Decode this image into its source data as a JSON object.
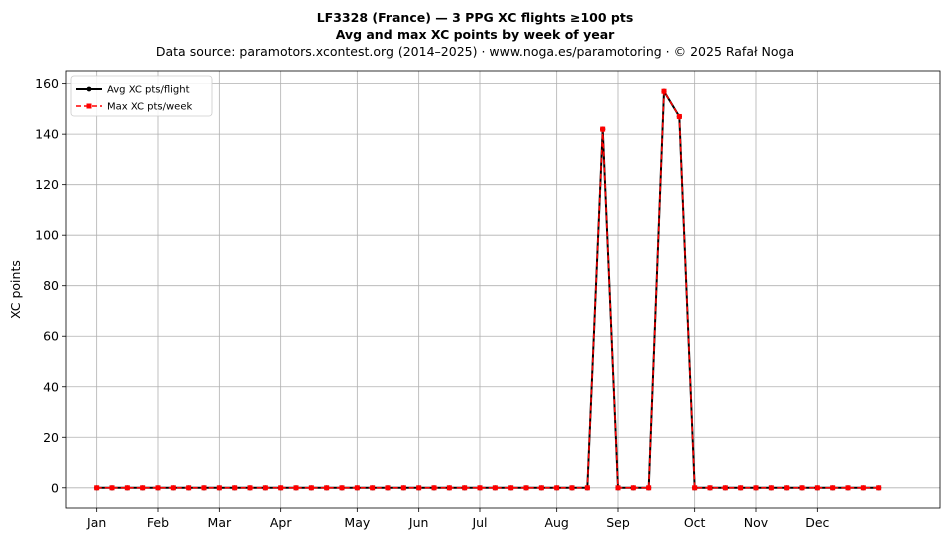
{
  "titles": {
    "line1": "LF3328 (France)  —  3 PPG XC flights ≥100 pts",
    "line2": "Avg and max XC points by week of year",
    "line3": "Data source: paramotors.xcontest.org (2014–2025)  ·  www.noga.es/paramotoring  ·  © 2025 Rafał Noga"
  },
  "chart_data": {
    "type": "line",
    "title": "LF3328 (France)  —  3 PPG XC flights ≥100 pts",
    "subtitle": "Avg and max XC points by week of year",
    "xlabel": "",
    "ylabel": "XC points",
    "x_unit": "week of year",
    "xlim": [
      -1,
      56
    ],
    "ylim": [
      -8,
      165
    ],
    "yticks": [
      0,
      20,
      40,
      60,
      80,
      100,
      120,
      140,
      160
    ],
    "xticks": [
      {
        "label": "Jan",
        "week": 1
      },
      {
        "label": "Feb",
        "week": 5
      },
      {
        "label": "Mar",
        "week": 9
      },
      {
        "label": "Apr",
        "week": 13
      },
      {
        "label": "May",
        "week": 18
      },
      {
        "label": "Jun",
        "week": 22
      },
      {
        "label": "Jul",
        "week": 26
      },
      {
        "label": "Aug",
        "week": 31
      },
      {
        "label": "Sep",
        "week": 35
      },
      {
        "label": "Oct",
        "week": 40
      },
      {
        "label": "Nov",
        "week": 44
      },
      {
        "label": "Dec",
        "week": 48
      }
    ],
    "grid": true,
    "legend_position": "top-left",
    "x": [
      1,
      2,
      3,
      4,
      5,
      6,
      7,
      8,
      9,
      10,
      11,
      12,
      13,
      14,
      15,
      16,
      17,
      18,
      19,
      20,
      21,
      22,
      23,
      24,
      25,
      26,
      27,
      28,
      29,
      30,
      31,
      32,
      33,
      34,
      35,
      36,
      37,
      38,
      39,
      40,
      41,
      42,
      43,
      44,
      45,
      46,
      47,
      48,
      49,
      50,
      51,
      52
    ],
    "series": [
      {
        "name": "Avg XC pts/flight",
        "color": "#000000",
        "marker": "circle",
        "linestyle": "solid",
        "values": [
          0,
          0,
          0,
          0,
          0,
          0,
          0,
          0,
          0,
          0,
          0,
          0,
          0,
          0,
          0,
          0,
          0,
          0,
          0,
          0,
          0,
          0,
          0,
          0,
          0,
          0,
          0,
          0,
          0,
          0,
          0,
          0,
          0,
          142,
          0,
          0,
          0,
          157,
          147,
          0,
          0,
          0,
          0,
          0,
          0,
          0,
          0,
          0,
          0,
          0,
          0,
          0
        ]
      },
      {
        "name": "Max XC pts/week",
        "color": "#ff0000",
        "marker": "square",
        "linestyle": "dashed",
        "values": [
          0,
          0,
          0,
          0,
          0,
          0,
          0,
          0,
          0,
          0,
          0,
          0,
          0,
          0,
          0,
          0,
          0,
          0,
          0,
          0,
          0,
          0,
          0,
          0,
          0,
          0,
          0,
          0,
          0,
          0,
          0,
          0,
          0,
          142,
          0,
          0,
          0,
          157,
          147,
          0,
          0,
          0,
          0,
          0,
          0,
          0,
          0,
          0,
          0,
          0,
          0,
          0
        ]
      }
    ]
  }
}
